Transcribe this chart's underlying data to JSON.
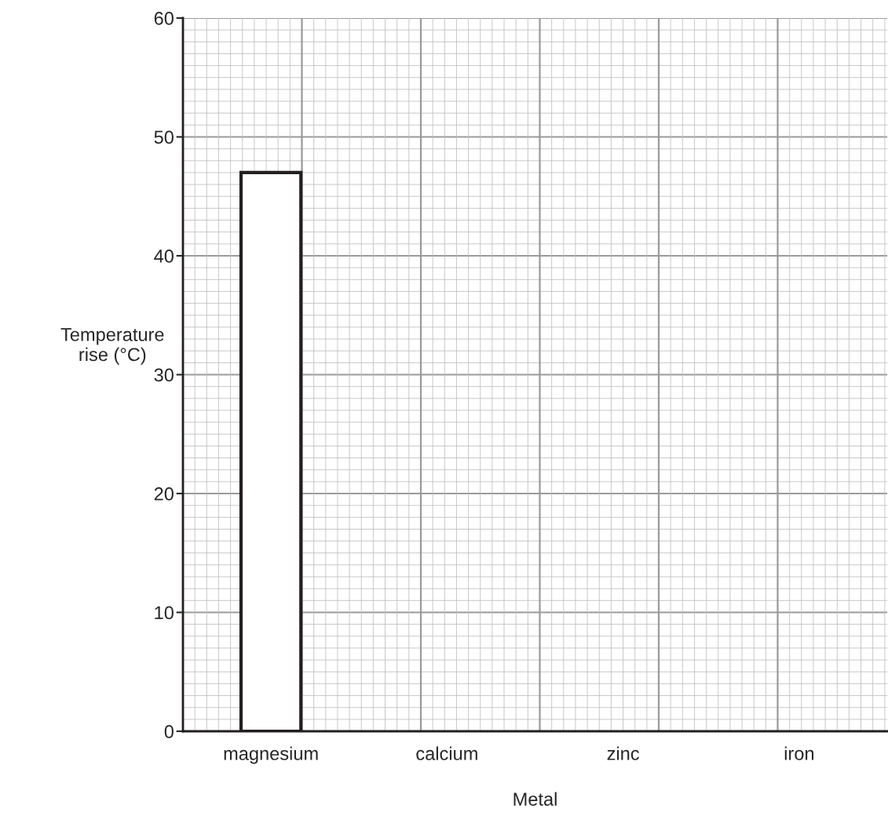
{
  "chart_data": {
    "type": "bar",
    "xlabel": "Metal",
    "ylabel": "Temperature\nrise (°C)",
    "categories": [
      "magnesium",
      "calcium",
      "zinc",
      "iron"
    ],
    "values": [
      47,
      null,
      null,
      null
    ],
    "color": "#ffffff",
    "ylim": [
      0,
      60
    ],
    "yticks": [
      0,
      10,
      20,
      30,
      40,
      50,
      60
    ],
    "grid": true
  }
}
